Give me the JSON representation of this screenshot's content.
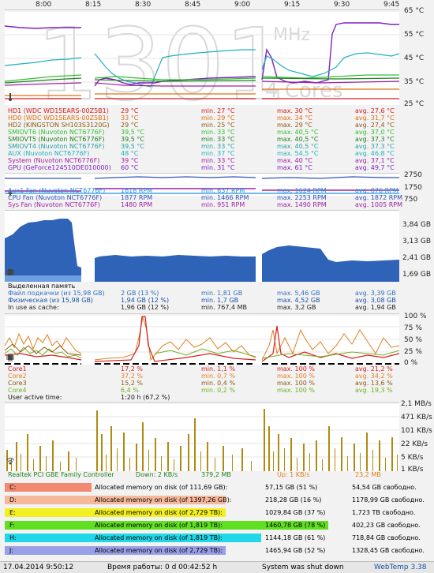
{
  "time_axis": [
    "8:00",
    "8:15",
    "8:30",
    "8:45",
    "9:00",
    "9:15",
    "9:30",
    "9:45"
  ],
  "watermark": {
    "digits": "1301",
    "unit1": "MHz",
    "unit2": "4 Cores"
  },
  "temp": {
    "axis": [
      "65 °C",
      "55 °C",
      "45 °C",
      "35 °C",
      "25 °C"
    ],
    "rows": [
      {
        "name": "HD1 (WDC WD15EARS-00Z5B1)",
        "cur": "29 °C",
        "min": "min. 27 °C",
        "max": "max. 30 °C",
        "avg": "avg. 27,6 °C",
        "color": "#d42020"
      },
      {
        "name": "HD0 (WDC WD15EARS-00Z5B1)",
        "cur": "33 °C",
        "min": "min. 29 °C",
        "max": "max. 34 °C",
        "avg": "avg. 31,7 °C",
        "color": "#e07010"
      },
      {
        "name": "HD2 (KINGSTON SH103S3120G)",
        "cur": "29 °C",
        "min": "min. 25 °C",
        "max": "max. 29 °C",
        "avg": "avg. 27,4 °C",
        "color": "#8a5a10"
      },
      {
        "name": "SMIOVT6 (Nuvoton NCT6776F)",
        "cur": "39,5 °C",
        "min": "min. 33 °C",
        "max": "max. 40,5 °C",
        "avg": "avg. 37,0 °C",
        "color": "#30c030"
      },
      {
        "name": "SMIOVT5 (Nuvoton NCT6776F)",
        "cur": "39,5 °C",
        "min": "min. 33 °C",
        "max": "max. 40,5 °C",
        "avg": "avg. 37,3 °C",
        "color": "#208020"
      },
      {
        "name": "SMIOVT4 (Nuvoton NCT6776F)",
        "cur": "39,5 °C",
        "min": "min. 33 °C",
        "max": "max. 40,5 °C",
        "avg": "avg. 37,3 °C",
        "color": "#28a0a0"
      },
      {
        "name": "AUX (Nuvoton NCT6776F)",
        "cur": "48 °C",
        "min": "min. 37 °C",
        "max": "max. 54,5 °C",
        "avg": "avg. 46,8 °C",
        "color": "#20b0c0"
      },
      {
        "name": "System (Nuvoton NCT6776F)",
        "cur": "39 °C",
        "min": "min. 33 °C",
        "max": "max. 40 °C",
        "avg": "avg. 37,1 °C",
        "color": "#a020a0"
      },
      {
        "name": "GPU (GeForce124510DE010000)",
        "cur": "60 °C",
        "min": "min. 31 °C",
        "max": "max. 61 °C",
        "avg": "avg. 49,7 °C",
        "color": "#8020c0"
      }
    ]
  },
  "fans": {
    "axis": [
      "2750",
      "1750",
      "750"
    ],
    "rows": [
      {
        "name": "Aux1 Fan (Nuvoton NCT6776F)",
        "cur": "1618 RPM",
        "min": "min. 637 RPM",
        "max": "max. 1624 RPM",
        "avg": "avg. 876 RPM",
        "color": "#2090e0"
      },
      {
        "name": "CPU Fan (Nuvoton NCT6776F)",
        "cur": "1877 RPM",
        "min": "min. 1466 RPM",
        "max": "max. 2253 RPM",
        "avg": "avg. 1872 RPM",
        "color": "#3050c0"
      },
      {
        "name": "Sys Fan (Nuvoton NCT6776F)",
        "cur": "1480 RPM",
        "min": "min. 951 RPM",
        "max": "max. 1490 RPM",
        "avg": "avg. 1005 RPM",
        "color": "#a020a0"
      }
    ]
  },
  "memory": {
    "axis": [
      "3,84 GB",
      "3,13 GB",
      "2,41 GB",
      "1,69 GB"
    ],
    "title": "Выделенная память",
    "rows": [
      {
        "name": "Файл подкачки (из 15,98 GB)",
        "cur": "2 GB (13 %)",
        "min": "min. 1,81 GB",
        "max": "max. 5,46 GB",
        "avg": "avg. 3,39 GB",
        "color": "#3070c0"
      },
      {
        "name": "Физическая (из 15,98 GB)",
        "cur": "1,94 GB (12 %)",
        "min": "min. 1,7 GB",
        "max": "max. 4,52 GB",
        "avg": "avg. 3,08 GB",
        "color": "#1a50a0"
      },
      {
        "name": "In use as cache:",
        "cur": "1,96 GB (12 %)",
        "min": "min. 767,4 MB",
        "max": "max. 3,2 GB",
        "avg": "avg. 1,94 GB",
        "color": "#222222"
      }
    ]
  },
  "cpu": {
    "axis": [
      "100 %",
      "75 %",
      "50 %",
      "25 %",
      "0 %"
    ],
    "rows": [
      {
        "name": "Core1",
        "cur": "17,2 %",
        "min": "min. 1,1 %",
        "max": "max. 100 %",
        "avg": "avg. 21,2 %",
        "color": "#d42020"
      },
      {
        "name": "Core2",
        "cur": "37,2 %",
        "min": "min. 0,7 %",
        "max": "max. 100 %",
        "avg": "avg. 34,2 %",
        "color": "#e08020"
      },
      {
        "name": "Core3",
        "cur": "15,2 %",
        "min": "min. 0,4 %",
        "max": "max. 100 %",
        "avg": "avg. 13,6 %",
        "color": "#8a5a10"
      },
      {
        "name": "Core4",
        "cur": "6,4 %",
        "min": "min. 0,2 %",
        "max": "max. 100 %",
        "avg": "avg. 19,3 %",
        "color": "#70b020"
      }
    ],
    "active_label": "User active time:",
    "active_value": "1:20 h (67,2 %)"
  },
  "net": {
    "axis": [
      "2,1 MB/s",
      "471 KB/s",
      "101 KB/s",
      "22 KB/s",
      "5 KB/s",
      "1 KB/s"
    ],
    "name": "Realtek PCI GBE Family Controller",
    "down": "Down: 2 KB/s",
    "down_total": "379,2 MB",
    "up": "Up: 1 KB/s",
    "up_total": "23,2 MB"
  },
  "disks": [
    {
      "letter": "C:",
      "label": "Allocated memory on disk (of 111,69 GB):",
      "used": "57,15 GB (51 %)",
      "free": "54,54 GB свободно.",
      "color": "#f08a70",
      "pct": 100
    },
    {
      "letter": "D:",
      "label": "Allocated memory on disk (of 1397,26 GB):",
      "used": "218,28 GB (16 %)",
      "free": "1178,99 GB свободно.",
      "color": "#f5b89a",
      "pct": 100
    },
    {
      "letter": "E:",
      "label": "Allocated memory on disk (of 2,729 TB):",
      "used": "1029,84 GB (37 %)",
      "free": "1,723 TB свободно.",
      "color": "#f2f020",
      "pct": 100
    },
    {
      "letter": "F:",
      "label": "Allocated memory on disk (of 1,819 TB):",
      "used": "1460,78 GB (78 %)",
      "free": "402,23 GB свободно.",
      "color": "#60e020",
      "pct": 100
    },
    {
      "letter": "H:",
      "label": "Allocated memory on disk (of 1,819 TB):",
      "used": "1144,18 GB (61 %)",
      "free": "718,84 GB свободно.",
      "color": "#20d8e8",
      "pct": 100
    },
    {
      "letter": "J:",
      "label": "Allocated memory on disk (of 2,729 TB):",
      "used": "1465,94 GB (52 %)",
      "free": "1328,45 GB свободно.",
      "color": "#9aa0e8",
      "pct": 100
    }
  ],
  "footer": {
    "datetime": "17.04.2014 9:50:12",
    "uptime": "Время работы: 0 d 00:42:52 h",
    "status": "System was shut down",
    "app": "WebTemp 3.38"
  }
}
